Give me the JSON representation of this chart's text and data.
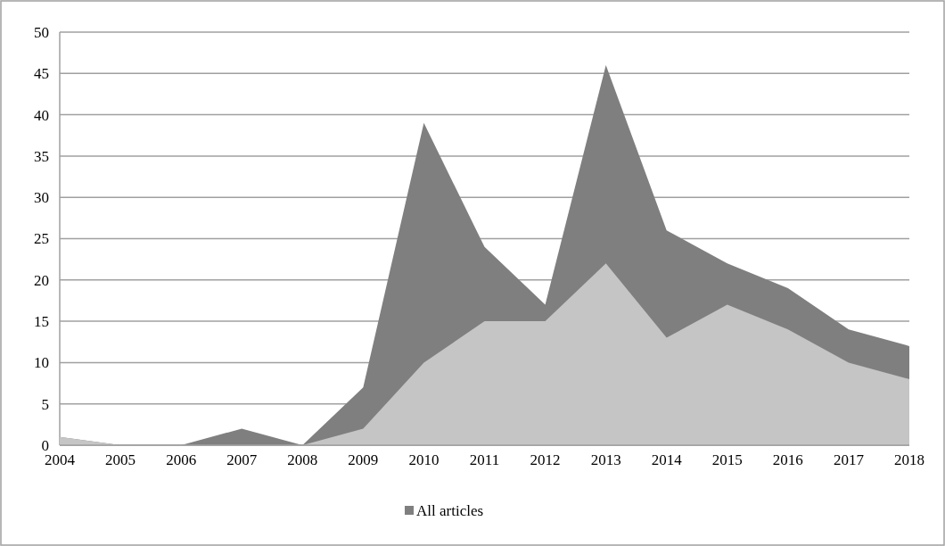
{
  "chart_data": {
    "type": "area",
    "categories": [
      "2004",
      "2005",
      "2006",
      "2007",
      "2008",
      "2009",
      "2010",
      "2011",
      "2012",
      "2013",
      "2014",
      "2015",
      "2016",
      "2017",
      "2018"
    ],
    "series": [
      {
        "name": "All articles",
        "color": "#7f7f7f",
        "values": [
          1,
          0,
          0,
          2,
          0,
          7,
          39,
          24,
          17,
          46,
          26,
          22,
          19,
          14,
          12
        ]
      },
      {
        "color": "#c4c5c4",
        "values": [
          1,
          0,
          0,
          0,
          0,
          2,
          10,
          15,
          15,
          22,
          13,
          17,
          14,
          10,
          8
        ]
      }
    ],
    "ylim": [
      0,
      50
    ],
    "yticks": [
      0,
      5,
      10,
      15,
      20,
      25,
      30,
      35,
      40,
      45,
      50
    ],
    "grid": "y",
    "legend": "bottom"
  }
}
